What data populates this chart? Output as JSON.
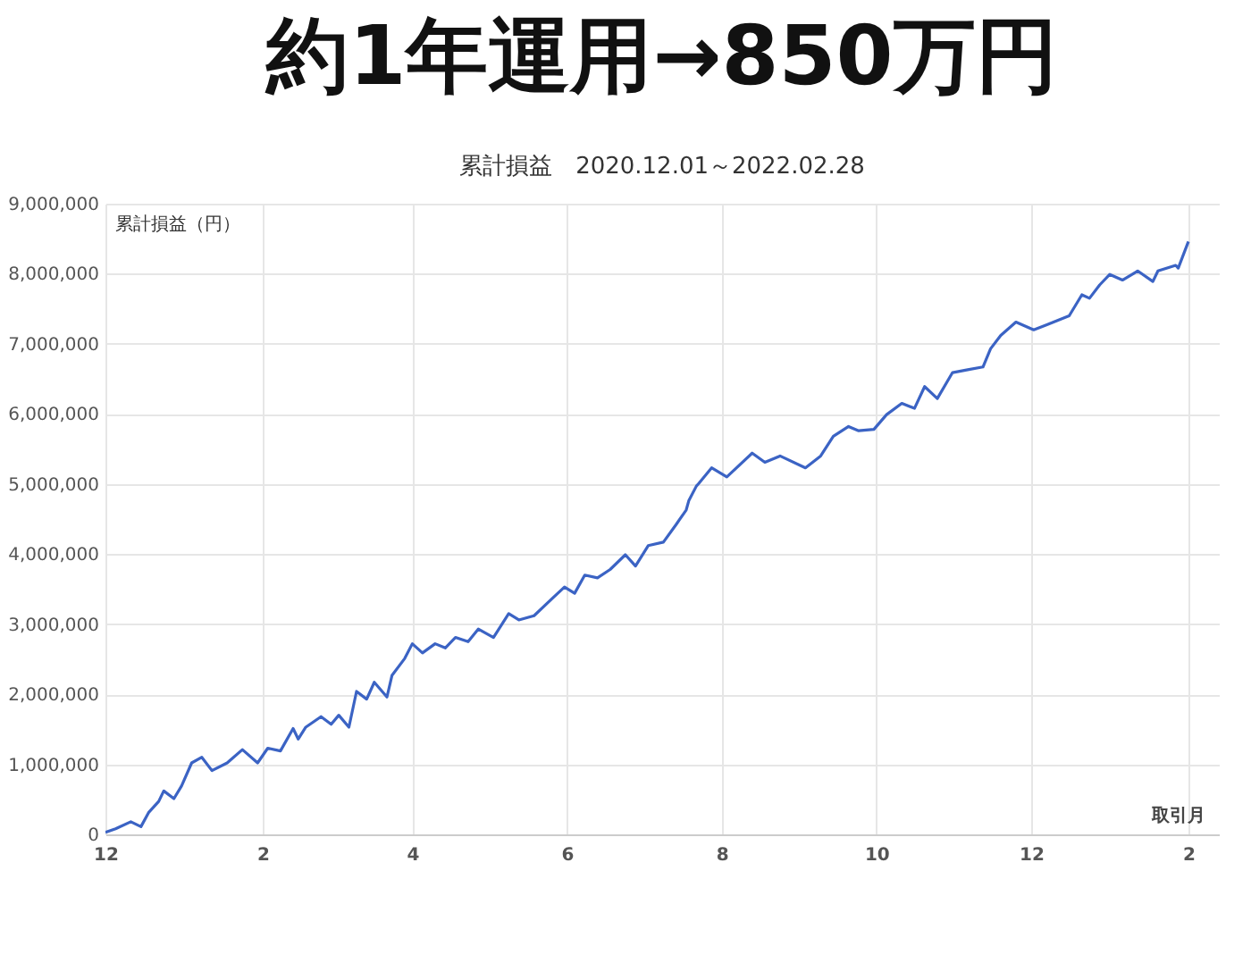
{
  "chart_data": {
    "type": "line",
    "title": "約1年運用→850万円",
    "subtitle": "累計損益　2020.12.01～2022.02.28",
    "ylabel": "累計損益（円）",
    "xlabel": "取引月",
    "x": [
      "2020-12-01",
      "2020-12-05",
      "2020-12-11",
      "2020-12-15",
      "2020-12-18",
      "2020-12-22",
      "2020-12-24",
      "2020-12-28",
      "2020-12-31",
      "2021-01-04",
      "2021-01-08",
      "2021-01-12",
      "2021-01-18",
      "2021-01-24",
      "2021-01-30",
      "2021-02-03",
      "2021-02-08",
      "2021-02-13",
      "2021-02-15",
      "2021-02-18",
      "2021-02-24",
      "2021-02-28",
      "2021-03-03",
      "2021-03-07",
      "2021-03-10",
      "2021-03-14",
      "2021-03-17",
      "2021-03-22",
      "2021-03-24",
      "2021-03-29",
      "2021-04-01",
      "2021-04-05",
      "2021-04-10",
      "2021-04-14",
      "2021-04-18",
      "2021-04-23",
      "2021-04-27",
      "2021-05-03",
      "2021-05-09",
      "2021-05-13",
      "2021-05-19",
      "2021-05-26",
      "2021-05-31",
      "2021-06-04",
      "2021-06-08",
      "2021-06-13",
      "2021-06-18",
      "2021-06-24",
      "2021-06-28",
      "2021-07-03",
      "2021-07-09",
      "2021-07-14",
      "2021-07-18",
      "2021-07-19",
      "2021-07-22",
      "2021-07-23",
      "2021-07-28",
      "2021-08-03",
      "2021-08-13",
      "2021-08-18",
      "2021-08-24",
      "2021-09-03",
      "2021-09-09",
      "2021-09-14",
      "2021-09-20",
      "2021-09-24",
      "2021-09-30",
      "2021-10-05",
      "2021-10-11",
      "2021-10-16",
      "2021-10-20",
      "2021-10-25",
      "2021-10-31",
      "2021-11-06",
      "2021-11-12",
      "2021-11-15",
      "2021-11-19",
      "2021-11-25",
      "2021-12-02",
      "2021-12-07",
      "2021-12-16",
      "2021-12-21",
      "2021-12-24",
      "2021-12-28",
      "2022-01-01",
      "2022-01-06",
      "2022-01-12",
      "2022-01-18",
      "2022-01-20",
      "2022-01-27",
      "2022-01-28",
      "2022-02-01"
    ],
    "series": [
      {
        "color": "#3b63c4",
        "values": [
          30000,
          80000,
          180000,
          110000,
          310000,
          470000,
          620000,
          510000,
          690000,
          1020000,
          1100000,
          910000,
          1020000,
          1210000,
          1020000,
          1230000,
          1190000,
          1510000,
          1360000,
          1530000,
          1680000,
          1570000,
          1700000,
          1530000,
          2040000,
          1930000,
          2170000,
          1960000,
          2270000,
          2510000,
          2720000,
          2590000,
          2720000,
          2660000,
          2810000,
          2750000,
          2930000,
          2810000,
          3150000,
          3060000,
          3120000,
          3360000,
          3530000,
          3440000,
          3700000,
          3660000,
          3780000,
          3990000,
          3830000,
          4120000,
          4170000,
          4420000,
          4630000,
          4760000,
          4970000,
          5010000,
          5230000,
          5100000,
          5440000,
          5310000,
          5400000,
          5230000,
          5400000,
          5680000,
          5820000,
          5760000,
          5780000,
          5990000,
          6150000,
          6080000,
          6390000,
          6220000,
          6590000,
          6630000,
          6670000,
          6930000,
          7120000,
          7310000,
          7200000,
          7270000,
          7400000,
          7700000,
          7650000,
          7840000,
          7990000,
          7910000,
          8040000,
          7890000,
          8040000,
          8120000,
          8080000,
          8460000
        ]
      }
    ],
    "xlim": [
      "2020-12-01",
      "2022-02-13"
    ],
    "xticks": [
      {
        "value": "2020-12-01",
        "label": "12"
      },
      {
        "value": "2021-02-01",
        "label": "2"
      },
      {
        "value": "2021-04-01",
        "label": "4"
      },
      {
        "value": "2021-06-01",
        "label": "6"
      },
      {
        "value": "2021-08-01",
        "label": "8"
      },
      {
        "value": "2021-10-01",
        "label": "10"
      },
      {
        "value": "2021-12-01",
        "label": "12"
      },
      {
        "value": "2022-02-01",
        "label": "2"
      }
    ],
    "ylim": [
      0,
      9000000
    ],
    "yticks": [
      {
        "value": 0,
        "label": "0"
      },
      {
        "value": 1000000,
        "label": "1,000,000"
      },
      {
        "value": 2000000,
        "label": "2,000,000"
      },
      {
        "value": 3000000,
        "label": "3,000,000"
      },
      {
        "value": 4000000,
        "label": "4,000,000"
      },
      {
        "value": 5000000,
        "label": "5,000,000"
      },
      {
        "value": 6000000,
        "label": "6,000,000"
      },
      {
        "value": 7000000,
        "label": "7,000,000"
      },
      {
        "value": 8000000,
        "label": "8,000,000"
      },
      {
        "value": 9000000,
        "label": "9,000,000"
      }
    ],
    "grid": true,
    "marker": "none",
    "line_style": "solid"
  }
}
